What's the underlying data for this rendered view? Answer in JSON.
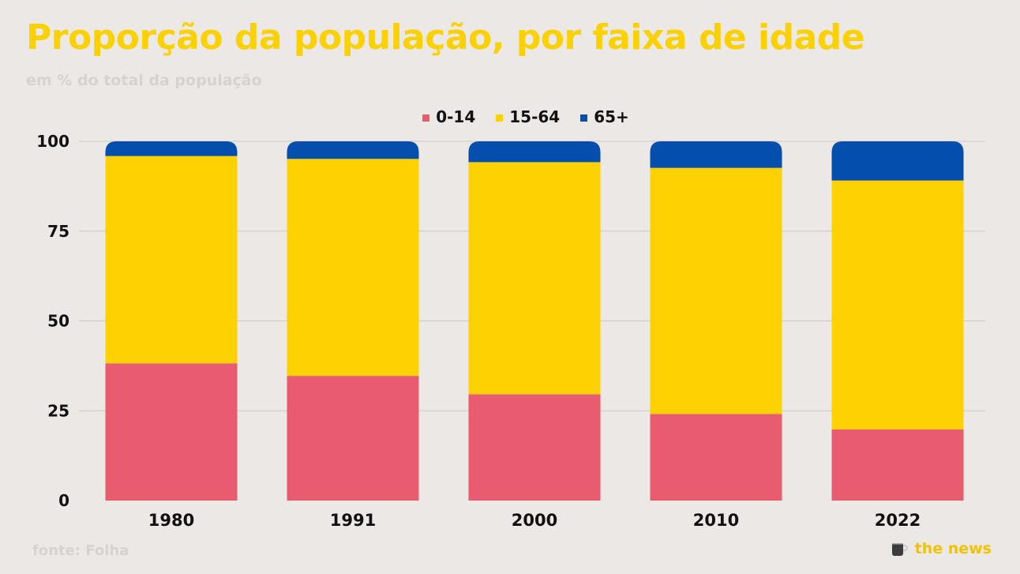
{
  "title": "Proporção da população, por faixa de idade",
  "subtitle": "em % do total da população",
  "source": "fonte: Folha",
  "brand": {
    "label": "the news",
    "icon": "coffee-mug-icon"
  },
  "colors": {
    "background": "#ece8e6",
    "title": "#fbd103",
    "series_0_14": "#e95b6e",
    "series_15_64": "#fed102",
    "series_65_plus": "#044fad"
  },
  "chart_data": {
    "type": "bar",
    "stacked": true,
    "categories": [
      "1980",
      "1991",
      "2000",
      "2010",
      "2022"
    ],
    "series": [
      {
        "name": "0-14",
        "color": "#e95b6e",
        "values": [
          38.2,
          34.7,
          29.6,
          24.1,
          19.8
        ]
      },
      {
        "name": "15-64",
        "color": "#fed102",
        "values": [
          57.7,
          60.4,
          64.6,
          68.5,
          69.3
        ]
      },
      {
        "name": "65+",
        "color": "#044fad",
        "values": [
          4.1,
          4.9,
          5.8,
          7.4,
          10.9
        ]
      }
    ],
    "yticks": [
      0,
      25,
      50,
      75,
      100
    ],
    "ylim": [
      0,
      100
    ],
    "grid": true,
    "legend": "top-center",
    "title": "Proporção da população, por faixa de idade",
    "subtitle": "em % do total da população"
  }
}
